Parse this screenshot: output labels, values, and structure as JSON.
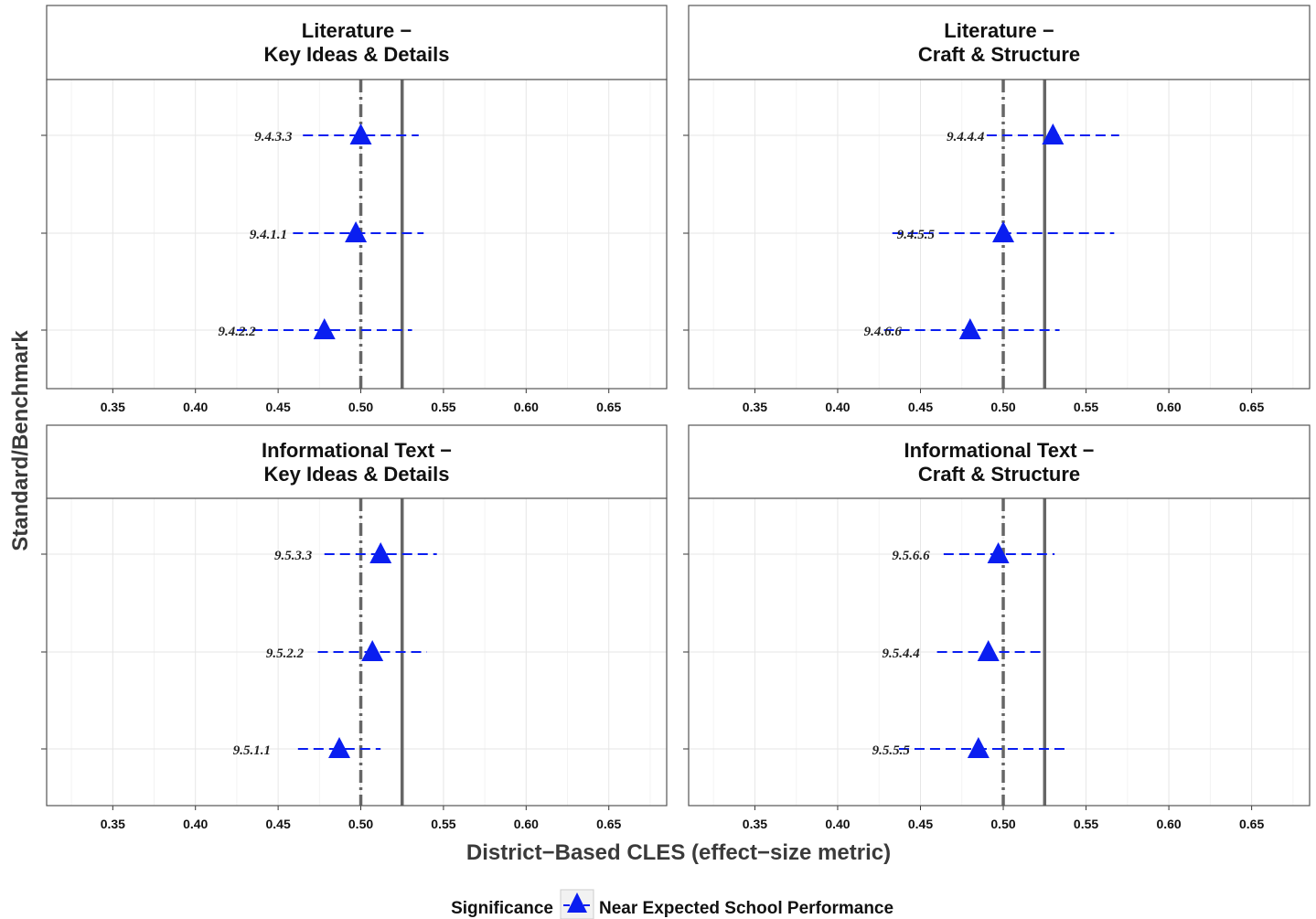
{
  "chart_data": {
    "type": "scatter",
    "subtype": "dot-plot with horizontal interval bars",
    "xlabel": "District−Based CLES  (effect−size metric)",
    "ylabel": "Standard/Benchmark",
    "xlim": [
      0.31,
      0.685
    ],
    "xticks": [
      "0.35",
      "0.40",
      "0.45",
      "0.50",
      "0.55",
      "0.60",
      "0.65"
    ],
    "reference_lines": [
      {
        "x": 0.5,
        "style": "dash-dot",
        "color": "#666666"
      },
      {
        "x": 0.525,
        "style": "solid",
        "color": "#666666"
      }
    ],
    "grid": true,
    "legend": {
      "position": "bottom",
      "title": "Significance",
      "entries": [
        {
          "label": "Near Expected School Performance",
          "marker": "triangle",
          "color": "#0a1ef0"
        }
      ]
    },
    "panels": [
      {
        "title_lines": [
          "Literature −",
          "Key Ideas & Details"
        ],
        "points": [
          {
            "label": "9.4.3.3",
            "value": 0.5,
            "lower": 0.465,
            "upper": 0.535
          },
          {
            "label": "9.4.1.1",
            "value": 0.497,
            "lower": 0.459,
            "upper": 0.538
          },
          {
            "label": "9.4.2.2",
            "value": 0.478,
            "lower": 0.425,
            "upper": 0.531
          }
        ]
      },
      {
        "title_lines": [
          "Literature −",
          "Craft & Structure"
        ],
        "points": [
          {
            "label": "9.4.4.4",
            "value": 0.53,
            "lower": 0.49,
            "upper": 0.57
          },
          {
            "label": "9.4.5.5",
            "value": 0.5,
            "lower": 0.433,
            "upper": 0.567
          },
          {
            "label": "9.4.6.6",
            "value": 0.48,
            "lower": 0.428,
            "upper": 0.534
          }
        ]
      },
      {
        "title_lines": [
          "Informational Text −",
          "Key Ideas & Details"
        ],
        "points": [
          {
            "label": "9.5.3.3",
            "value": 0.512,
            "lower": 0.478,
            "upper": 0.546
          },
          {
            "label": "9.5.2.2",
            "value": 0.507,
            "lower": 0.474,
            "upper": 0.54
          },
          {
            "label": "9.5.1.1",
            "value": 0.487,
            "lower": 0.462,
            "upper": 0.512
          }
        ]
      },
      {
        "title_lines": [
          "Informational Text −",
          "Craft & Structure"
        ],
        "points": [
          {
            "label": "9.5.6.6",
            "value": 0.497,
            "lower": 0.464,
            "upper": 0.531
          },
          {
            "label": "9.5.4.4",
            "value": 0.491,
            "lower": 0.46,
            "upper": 0.524
          },
          {
            "label": "9.5.5.5",
            "value": 0.485,
            "lower": 0.437,
            "upper": 0.539
          }
        ]
      }
    ]
  }
}
